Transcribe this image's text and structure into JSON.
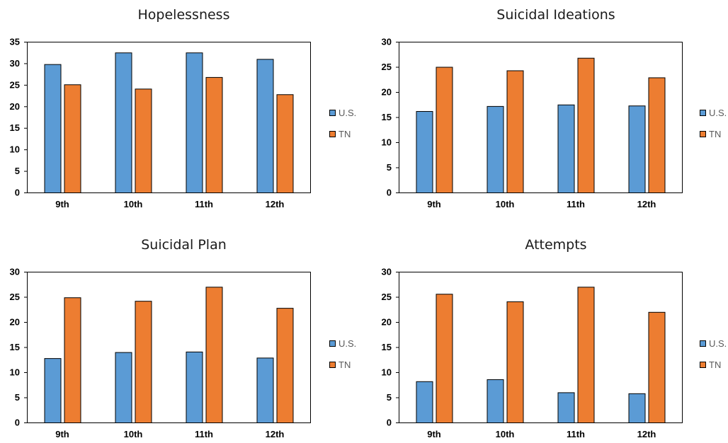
{
  "colors": {
    "us": "#5b9bd5",
    "tn": "#ed7d31"
  },
  "legend": {
    "us_label": "U.S.",
    "tn_label": "TN"
  },
  "chart_data": [
    {
      "type": "bar",
      "title": "Hopelessness",
      "categories": [
        "9th",
        "10th",
        "11th",
        "12th"
      ],
      "ylim": [
        0,
        35
      ],
      "yticks": [
        0,
        5,
        10,
        15,
        20,
        25,
        30,
        35
      ],
      "series": [
        {
          "name": "U.S.",
          "values": [
            29.8,
            32.5,
            32.5,
            31.0
          ]
        },
        {
          "name": "TN",
          "values": [
            25.1,
            24.1,
            26.8,
            22.8
          ]
        }
      ],
      "legend_position": "right"
    },
    {
      "type": "bar",
      "title": "Suicidal Ideations",
      "categories": [
        "9th",
        "10th",
        "11th",
        "12th"
      ],
      "ylim": [
        0,
        30
      ],
      "yticks": [
        0,
        5,
        10,
        15,
        20,
        25,
        30
      ],
      "series": [
        {
          "name": "U.S.",
          "values": [
            16.2,
            17.2,
            17.5,
            17.3
          ]
        },
        {
          "name": "TN",
          "values": [
            25.0,
            24.3,
            26.8,
            22.9
          ]
        }
      ],
      "legend_position": "right"
    },
    {
      "type": "bar",
      "title": "Suicidal Plan",
      "categories": [
        "9th",
        "10th",
        "11th",
        "12th"
      ],
      "ylim": [
        0,
        30
      ],
      "yticks": [
        0,
        5,
        10,
        15,
        20,
        25,
        30
      ],
      "series": [
        {
          "name": "U.S.",
          "values": [
            12.8,
            14.0,
            14.1,
            12.9
          ]
        },
        {
          "name": "TN",
          "values": [
            24.9,
            24.2,
            27.0,
            22.8
          ]
        }
      ],
      "legend_position": "right"
    },
    {
      "type": "bar",
      "title": "Attempts",
      "categories": [
        "9th",
        "10th",
        "11th",
        "12th"
      ],
      "ylim": [
        0,
        30
      ],
      "yticks": [
        0,
        5,
        10,
        15,
        20,
        25,
        30
      ],
      "series": [
        {
          "name": "U.S.",
          "values": [
            8.2,
            8.6,
            6.0,
            5.8
          ]
        },
        {
          "name": "TN",
          "values": [
            25.6,
            24.1,
            27.0,
            22.0
          ]
        }
      ],
      "legend_position": "right"
    }
  ]
}
